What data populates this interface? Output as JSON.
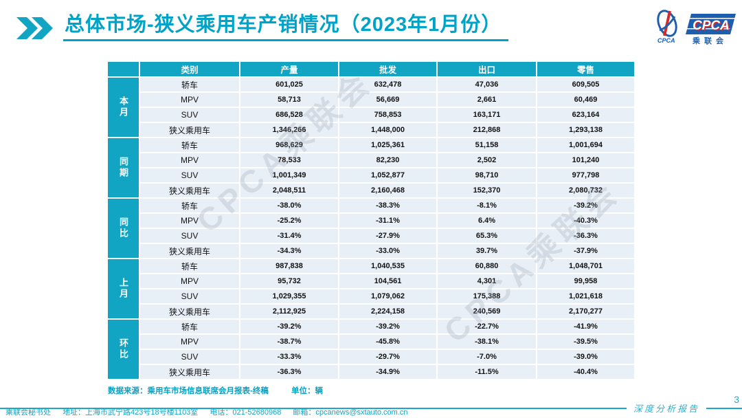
{
  "header": {
    "title": "总体市场-狭义乘用车产销情况（2023年1月份）"
  },
  "logo": {
    "cpca": "CPCA",
    "cpca_small": "CPCA",
    "cn_name": "乘联会"
  },
  "table": {
    "columns": [
      "类别",
      "产量",
      "批发",
      "出口",
      "零售"
    ],
    "groups": [
      {
        "label": "本月",
        "rows": [
          {
            "category": "轿车",
            "values": [
              "601,025",
              "632,478",
              "47,036",
              "609,505"
            ]
          },
          {
            "category": "MPV",
            "values": [
              "58,713",
              "56,669",
              "2,661",
              "60,469"
            ]
          },
          {
            "category": "SUV",
            "values": [
              "686,528",
              "758,853",
              "163,171",
              "623,164"
            ]
          },
          {
            "category": "狭义乘用车",
            "values": [
              "1,346,266",
              "1,448,000",
              "212,868",
              "1,293,138"
            ]
          }
        ]
      },
      {
        "label": "同期",
        "rows": [
          {
            "category": "轿车",
            "values": [
              "968,629",
              "1,025,361",
              "51,158",
              "1,001,694"
            ]
          },
          {
            "category": "MPV",
            "values": [
              "78,533",
              "82,230",
              "2,502",
              "101,240"
            ]
          },
          {
            "category": "SUV",
            "values": [
              "1,001,349",
              "1,052,877",
              "98,710",
              "977,798"
            ]
          },
          {
            "category": "狭义乘用车",
            "values": [
              "2,048,511",
              "2,160,468",
              "152,370",
              "2,080,732"
            ]
          }
        ]
      },
      {
        "label": "同比",
        "rows": [
          {
            "category": "轿车",
            "values": [
              "-38.0%",
              "-38.3%",
              "-8.1%",
              "-39.2%"
            ]
          },
          {
            "category": "MPV",
            "values": [
              "-25.2%",
              "-31.1%",
              "6.4%",
              "-40.3%"
            ]
          },
          {
            "category": "SUV",
            "values": [
              "-31.4%",
              "-27.9%",
              "65.3%",
              "-36.3%"
            ]
          },
          {
            "category": "狭义乘用车",
            "values": [
              "-34.3%",
              "-33.0%",
              "39.7%",
              "-37.9%"
            ]
          }
        ]
      },
      {
        "label": "上月",
        "rows": [
          {
            "category": "轿车",
            "values": [
              "987,838",
              "1,040,535",
              "60,880",
              "1,048,701"
            ]
          },
          {
            "category": "MPV",
            "values": [
              "95,732",
              "104,561",
              "4,301",
              "99,958"
            ]
          },
          {
            "category": "SUV",
            "values": [
              "1,029,355",
              "1,079,062",
              "175,388",
              "1,021,618"
            ]
          },
          {
            "category": "狭义乘用车",
            "values": [
              "2,112,925",
              "2,224,158",
              "240,569",
              "2,170,277"
            ]
          }
        ]
      },
      {
        "label": "环比",
        "rows": [
          {
            "category": "轿车",
            "values": [
              "-39.2%",
              "-39.2%",
              "-22.7%",
              "-41.9%"
            ]
          },
          {
            "category": "MPV",
            "values": [
              "-38.7%",
              "-45.8%",
              "-38.1%",
              "-39.5%"
            ]
          },
          {
            "category": "SUV",
            "values": [
              "-33.3%",
              "-29.7%",
              "-7.0%",
              "-39.0%"
            ]
          },
          {
            "category": "狭义乘用车",
            "values": [
              "-36.3%",
              "-34.9%",
              "-11.5%",
              "-40.4%"
            ]
          }
        ]
      }
    ],
    "source_note": "数据来源：乘用车市场信息联席会月报表-终稿",
    "unit_note": "单位：辆"
  },
  "watermark": "CPCA乘联会",
  "footer": {
    "items": [
      "乘联会秘书处",
      "地址：上海市武宁路423号18号楼1103室",
      "电话：021-52680968",
      "邮箱：cpcanews@sxtauto.com.cn"
    ],
    "report_label": "深度分析报告",
    "page_number": "3"
  },
  "colors": {
    "teal": "#12a5c3",
    "title_teal": "#00a3c8",
    "row_bg": "#e9eff7",
    "logo_blue": "#1e5eae",
    "logo_red": "#d42a2a"
  }
}
